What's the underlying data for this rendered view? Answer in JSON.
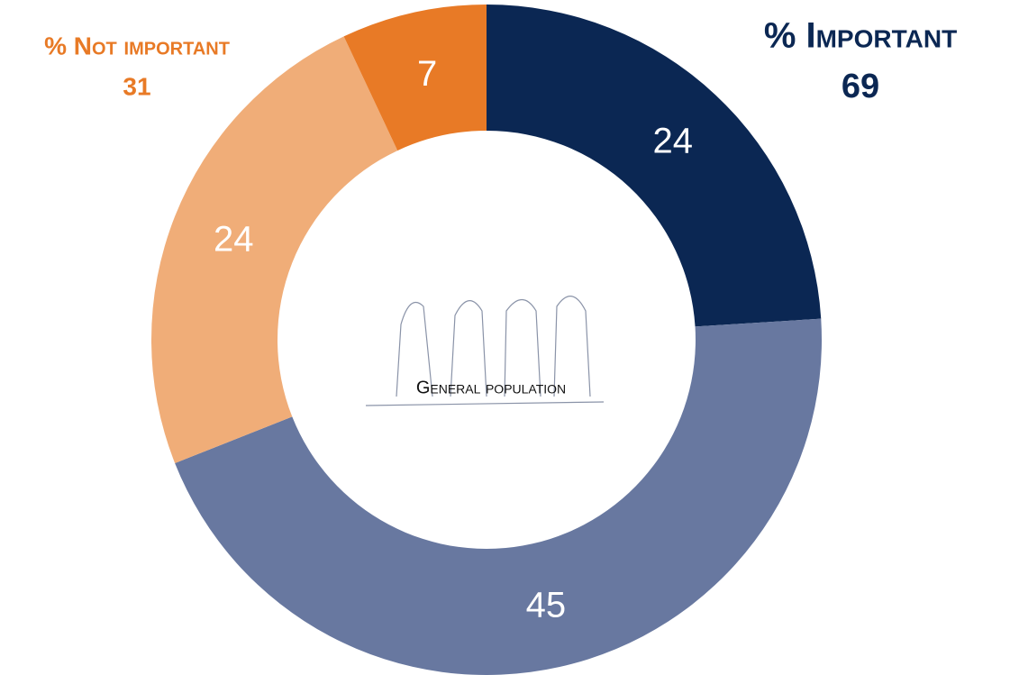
{
  "chart_data": {
    "type": "donut",
    "values": [
      24,
      45,
      24,
      7
    ],
    "colors": [
      "#0b2753",
      "#6878a0",
      "#f0ad78",
      "#e87a26"
    ],
    "center_label": "General population",
    "annotations": [
      {
        "text": "% Important",
        "value": 69,
        "color": "#0b2753"
      },
      {
        "text": "% Not important",
        "value": 31,
        "color": "#e87a26"
      }
    ]
  }
}
